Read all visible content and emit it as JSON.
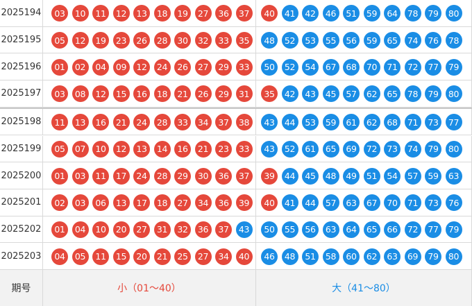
{
  "table": {
    "rows": [
      {
        "issue": "2025194",
        "numbers": [
          "03",
          "10",
          "11",
          "12",
          "13",
          "18",
          "19",
          "27",
          "36",
          "37",
          "40",
          "41",
          "42",
          "46",
          "51",
          "59",
          "64",
          "78",
          "79",
          "80"
        ]
      },
      {
        "issue": "2025195",
        "numbers": [
          "05",
          "12",
          "19",
          "23",
          "26",
          "28",
          "30",
          "32",
          "33",
          "35",
          "48",
          "52",
          "53",
          "55",
          "56",
          "59",
          "65",
          "74",
          "76",
          "78"
        ]
      },
      {
        "issue": "2025196",
        "numbers": [
          "01",
          "02",
          "04",
          "09",
          "12",
          "24",
          "26",
          "27",
          "29",
          "33",
          "50",
          "52",
          "54",
          "67",
          "68",
          "70",
          "71",
          "72",
          "77",
          "79"
        ]
      },
      {
        "issue": "2025197",
        "numbers": [
          "03",
          "08",
          "12",
          "15",
          "16",
          "18",
          "21",
          "26",
          "29",
          "31",
          "35",
          "42",
          "43",
          "45",
          "57",
          "62",
          "65",
          "78",
          "79",
          "80"
        ]
      },
      {
        "issue": "2025198",
        "numbers": [
          "11",
          "13",
          "16",
          "21",
          "24",
          "28",
          "33",
          "34",
          "37",
          "38",
          "43",
          "44",
          "53",
          "59",
          "61",
          "62",
          "68",
          "71",
          "73",
          "77"
        ]
      },
      {
        "issue": "2025199",
        "numbers": [
          "05",
          "07",
          "10",
          "12",
          "13",
          "14",
          "16",
          "21",
          "23",
          "33",
          "43",
          "52",
          "61",
          "65",
          "69",
          "72",
          "73",
          "74",
          "79",
          "80"
        ]
      },
      {
        "issue": "2025200",
        "numbers": [
          "01",
          "03",
          "11",
          "17",
          "24",
          "28",
          "29",
          "30",
          "36",
          "37",
          "39",
          "44",
          "45",
          "48",
          "49",
          "51",
          "54",
          "57",
          "59",
          "63"
        ]
      },
      {
        "issue": "2025201",
        "numbers": [
          "02",
          "03",
          "06",
          "13",
          "17",
          "18",
          "27",
          "34",
          "36",
          "39",
          "40",
          "41",
          "44",
          "57",
          "63",
          "67",
          "70",
          "71",
          "73",
          "76"
        ]
      },
      {
        "issue": "2025202",
        "numbers": [
          "01",
          "04",
          "10",
          "20",
          "27",
          "31",
          "32",
          "36",
          "37",
          "43",
          "50",
          "55",
          "56",
          "63",
          "64",
          "65",
          "66",
          "72",
          "77",
          "79"
        ]
      },
      {
        "issue": "2025203",
        "numbers": [
          "04",
          "05",
          "11",
          "15",
          "20",
          "21",
          "25",
          "27",
          "34",
          "40",
          "46",
          "48",
          "51",
          "58",
          "60",
          "62",
          "63",
          "69",
          "79",
          "80"
        ]
      }
    ],
    "footer": {
      "issue": "期号",
      "small": "小（01～40）",
      "large": "大（41～80）"
    },
    "small_range": [
      1,
      40
    ],
    "colors": {
      "small": "#e5483b",
      "large": "#1a8de5"
    }
  }
}
